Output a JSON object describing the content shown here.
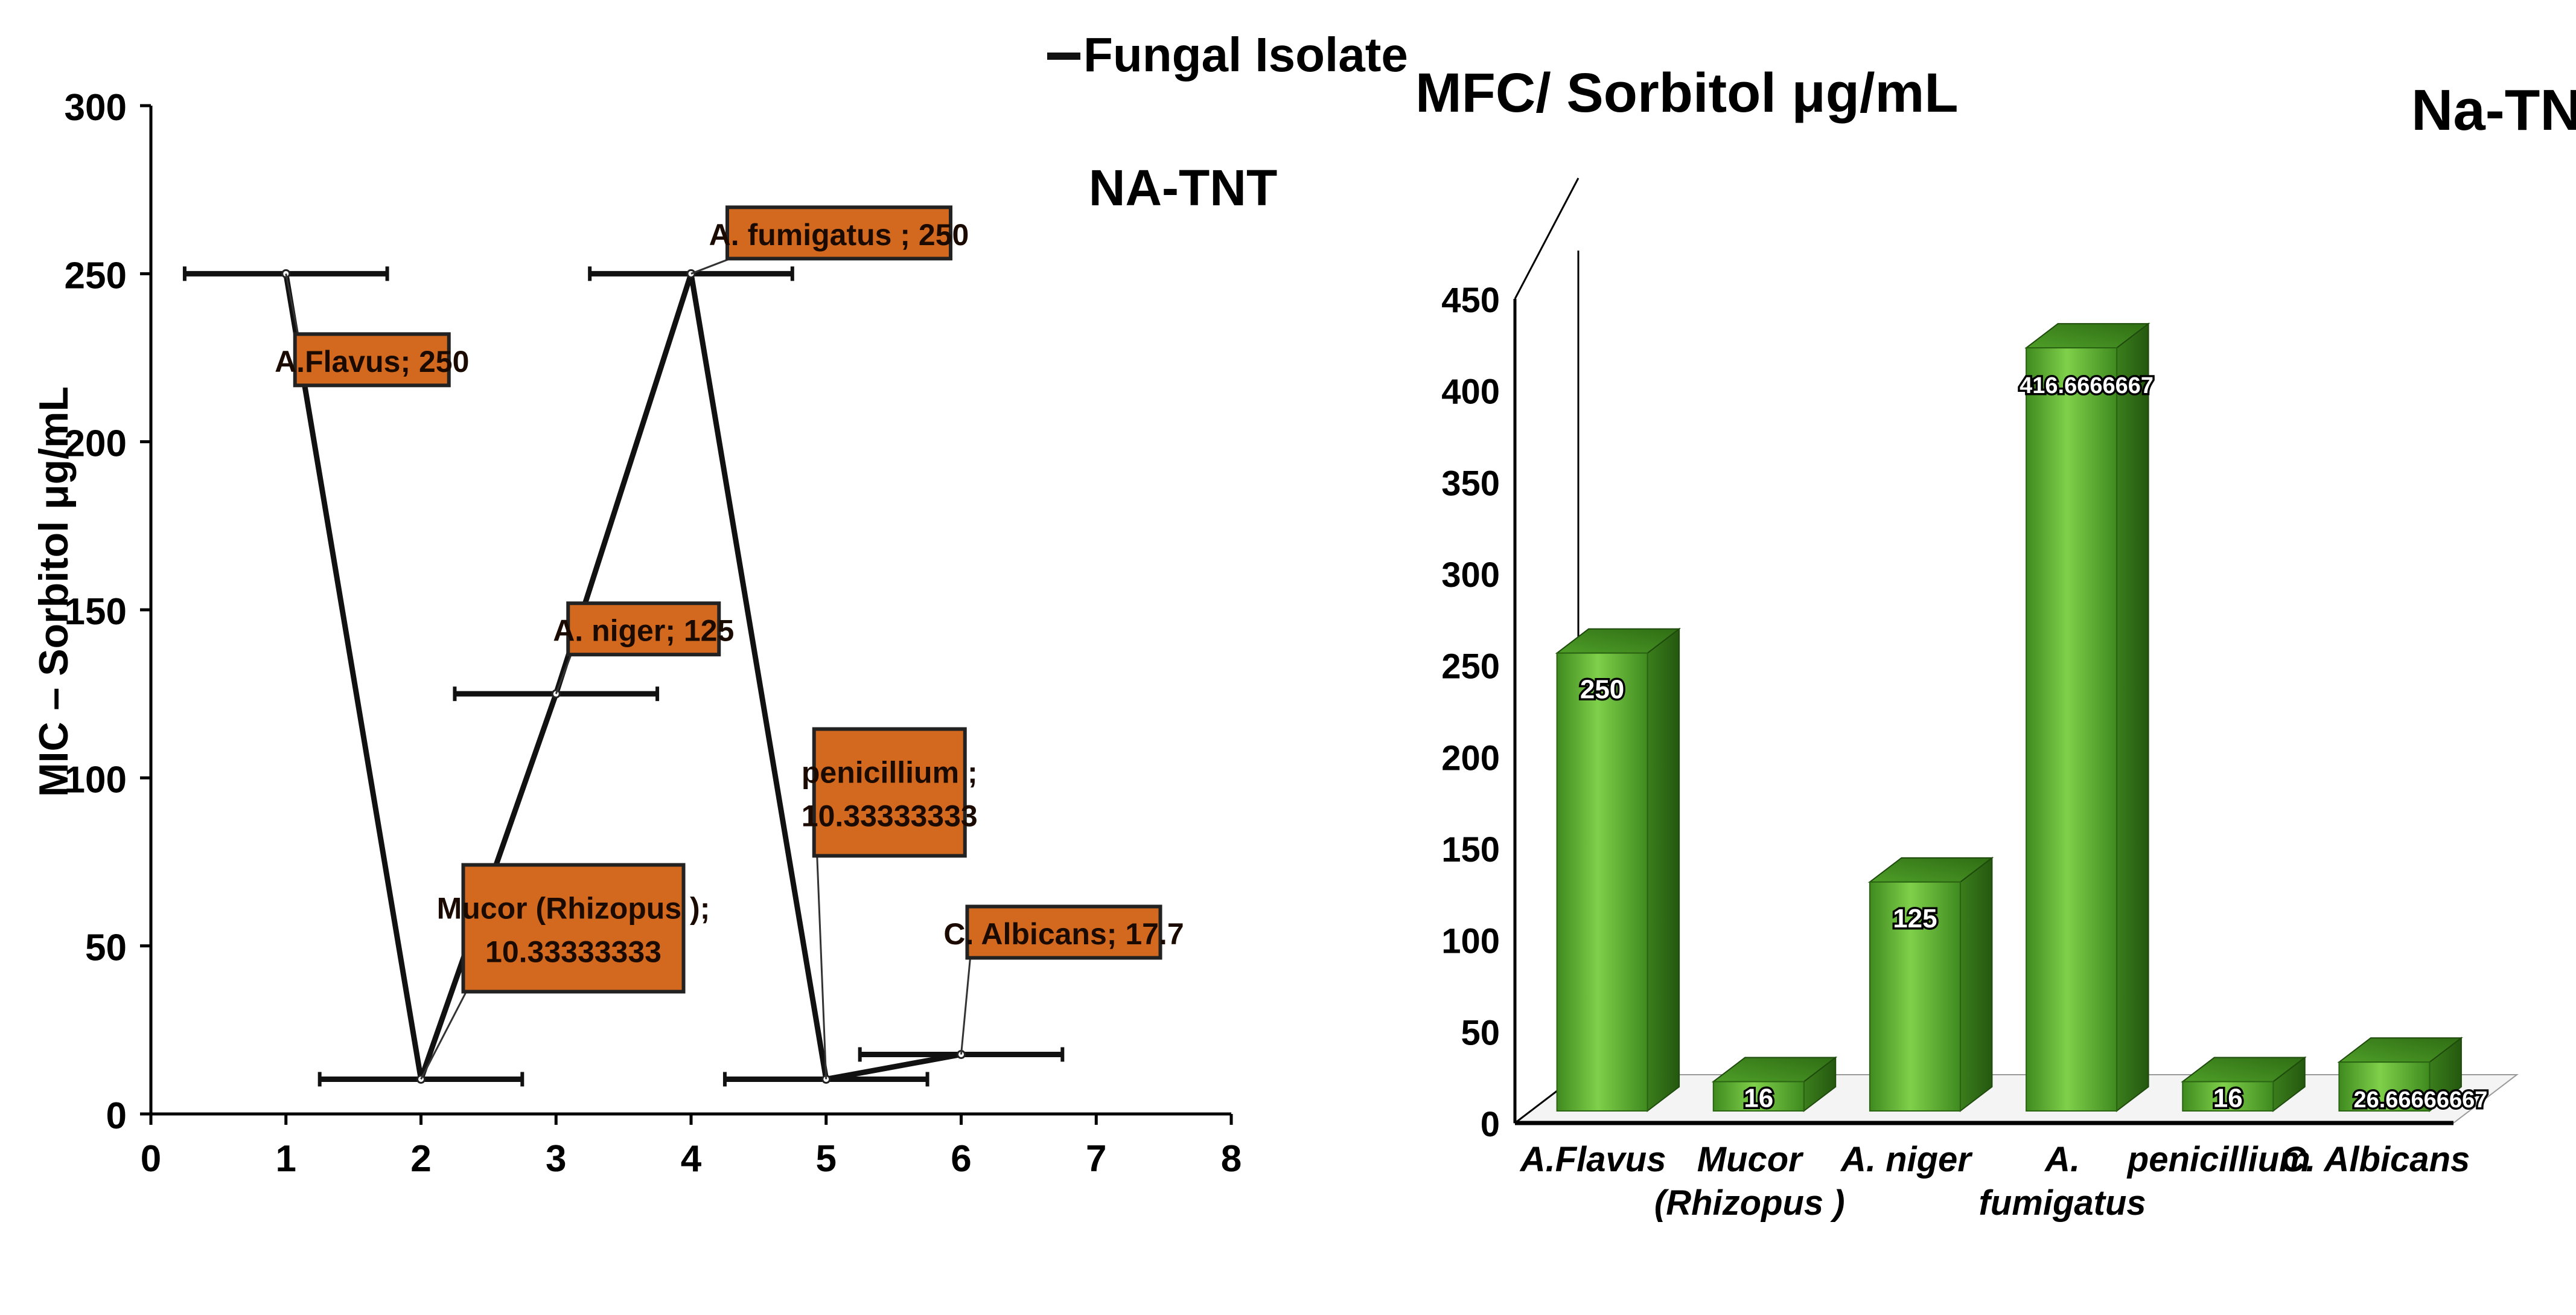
{
  "chart_data": [
    {
      "type": "scatter",
      "title": "NA-TNT",
      "legend": "Fungal Isolate",
      "xlabel": "",
      "ylabel": "MIC – Sorbitol μg/mL",
      "xlim": [
        0,
        8
      ],
      "ylim": [
        0,
        300
      ],
      "xticks": [
        "0",
        "1",
        "2",
        "3",
        "4",
        "5",
        "6",
        "7",
        "8"
      ],
      "yticks": [
        "0",
        "50",
        "100",
        "150",
        "200",
        "250",
        "300"
      ],
      "points": [
        {
          "x": 1,
          "y": 250,
          "label": [
            "A.Flavus; 250"
          ]
        },
        {
          "x": 2,
          "y": 10.33333333,
          "label": [
            "Mucor (Rhizopus );",
            "10.33333333"
          ]
        },
        {
          "x": 3,
          "y": 125,
          "label": [
            "A. niger; 125"
          ]
        },
        {
          "x": 4,
          "y": 250,
          "label": [
            "A. fumigatus ; 250"
          ]
        },
        {
          "x": 5,
          "y": 10.33333333,
          "label": [
            "penicillium ;",
            "10.33333333"
          ]
        },
        {
          "x": 6,
          "y": 17.7,
          "label": [
            "C. Albicans; 17.7"
          ]
        }
      ],
      "error_x": 0.75,
      "colors": {
        "line": "#111111",
        "label_bg": "#d2691e",
        "label_border": "#222222"
      }
    },
    {
      "type": "bar",
      "title": "MFC/ Sorbitol μg/mL",
      "subtitle": "Na-TNT",
      "categories": [
        [
          "A.Flavus"
        ],
        [
          "Mucor",
          "(Rhizopus )"
        ],
        [
          "A. niger"
        ],
        [
          "A.",
          "fumigatus"
        ],
        [
          "penicillium"
        ],
        [
          "C. Albicans"
        ]
      ],
      "values": [
        250,
        16,
        125,
        416.6666667,
        16,
        26.66666667
      ],
      "value_labels": [
        "250",
        "16",
        "125",
        "416.6666667",
        "16",
        "26.66666667"
      ],
      "ylim": [
        0,
        450
      ],
      "yticks": [
        "0",
        "50",
        "100",
        "150",
        "200",
        "250",
        "300",
        "350",
        "400",
        "450"
      ],
      "colors": {
        "front": "#5fb030",
        "top": "#4a9a28",
        "side": "#3a7d1e"
      }
    }
  ]
}
